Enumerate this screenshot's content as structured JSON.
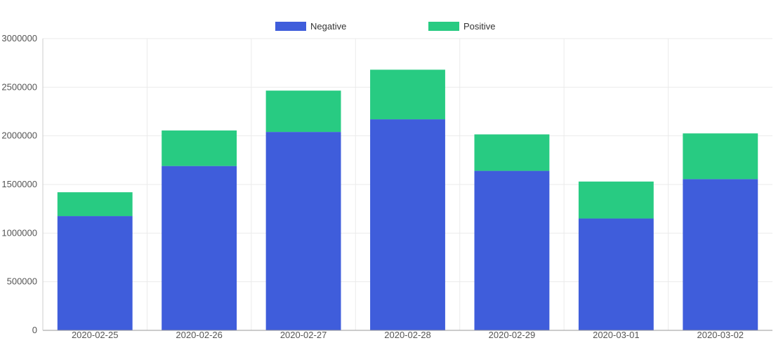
{
  "chart_data": {
    "type": "bar",
    "stacked": true,
    "categories": [
      "2020-02-25",
      "2020-02-26",
      "2020-02-27",
      "2020-02-28",
      "2020-02-29",
      "2020-03-01",
      "2020-03-02"
    ],
    "series": [
      {
        "name": "Negative",
        "color": "#3f5ddb",
        "values": [
          1175000,
          1690000,
          2040000,
          2170000,
          1640000,
          1150000,
          1555000
        ]
      },
      {
        "name": "Positive",
        "color": "#28cb82",
        "values": [
          245000,
          365000,
          425000,
          510000,
          375000,
          380000,
          470000
        ]
      }
    ],
    "y_ticks": [
      "0",
      "500000",
      "1000000",
      "1500000",
      "2000000",
      "2500000",
      "3000000"
    ],
    "ylim": [
      0,
      3000000
    ],
    "grid": true,
    "legend": "top-center",
    "title": "",
    "xlabel": "",
    "ylabel": ""
  }
}
